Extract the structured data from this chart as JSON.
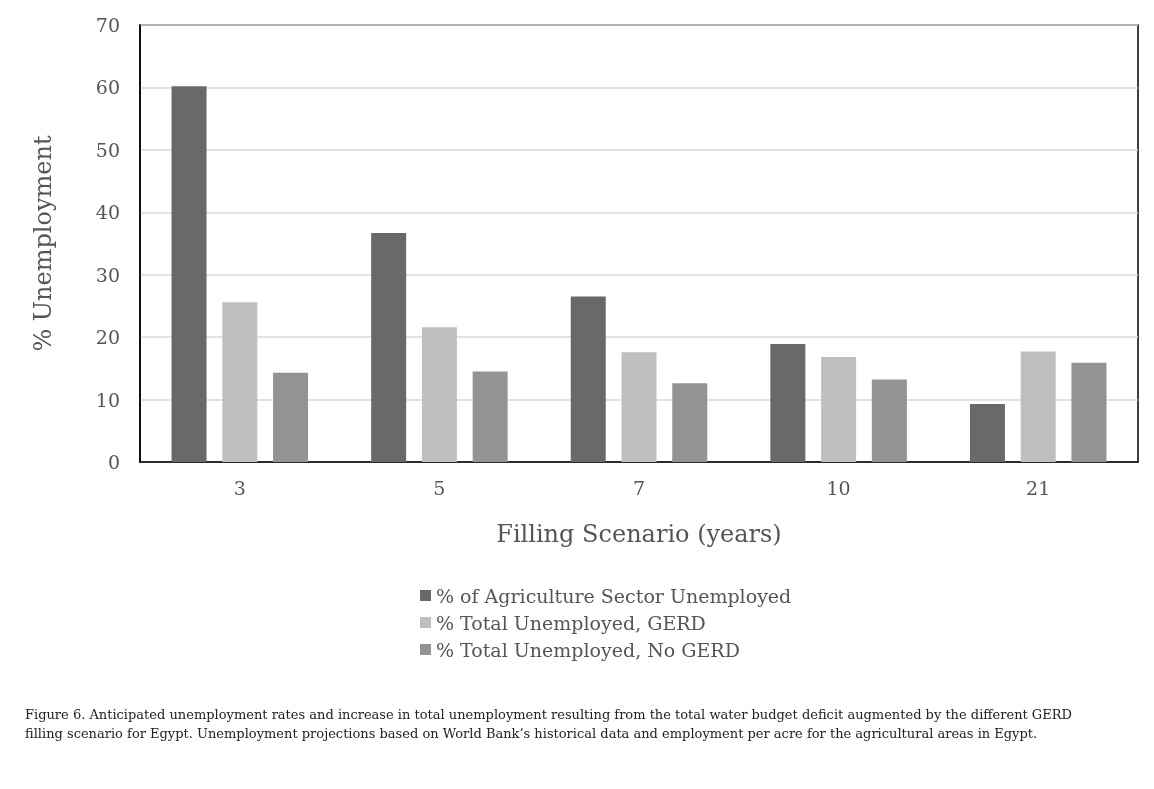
{
  "chart_data": {
    "type": "bar",
    "xlabel": "Filling Scenario (years)",
    "ylabel": "% Unemployment",
    "categories": [
      "3",
      "5",
      "7",
      "10",
      "21"
    ],
    "series": [
      {
        "name": "% of Agriculture Sector Unemployed",
        "color": "#696969",
        "values": [
          60.2,
          36.7,
          26.5,
          18.9,
          9.3
        ]
      },
      {
        "name": "% Total Unemployed, GERD",
        "color": "#bfbfbf",
        "values": [
          25.6,
          21.6,
          17.6,
          16.8,
          17.7
        ]
      },
      {
        "name": "% Total Unemployed, No GERD",
        "color": "#939393",
        "values": [
          14.3,
          14.5,
          12.6,
          13.2,
          15.9
        ]
      }
    ],
    "ylim": [
      0,
      70
    ],
    "yticks": [
      0,
      10,
      20,
      30,
      40,
      50,
      60,
      70
    ],
    "grid": "y",
    "legend": "bottom",
    "annotations": [
      "Figure 6. Anticipated unemployment rates and increase in total unemployment resulting from the total water budget deficit augmented by the different GERD filling scenario for Egypt. Unemployment projections based on World Bank’s historical data and employment per acre for the agricultural areas in Egypt."
    ]
  }
}
